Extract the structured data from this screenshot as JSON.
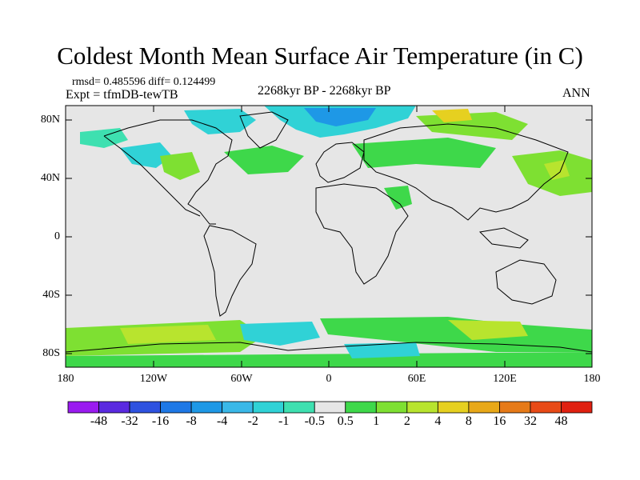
{
  "title": "Coldest Month Mean Surface Air Temperature (in C)",
  "stats": "rmsd= 0.485596 diff= 0.124499",
  "experiment": "Expt = tfmDB-tewTB",
  "period": "2268kyr BP - 2268kyr BP",
  "season": "ANN",
  "lat_labels": [
    "80N",
    "40N",
    "0",
    "40S",
    "80S"
  ],
  "lon_labels": [
    "180",
    "120W",
    "60W",
    "0",
    "60E",
    "120E",
    "180"
  ],
  "colorbar": {
    "labels": [
      "-48",
      "-32",
      "-16",
      "-8",
      "-4",
      "-2",
      "-1",
      "-0.5",
      "0.5",
      "1",
      "2",
      "4",
      "8",
      "16",
      "32",
      "48"
    ],
    "colors": [
      "#9a1bf0",
      "#5a2ae0",
      "#2e52e0",
      "#1e78e6",
      "#1e98e6",
      "#3ab8e8",
      "#30d2d6",
      "#3ee0b0",
      "#e6e6e6",
      "#3ed84a",
      "#7ee032",
      "#b8e42e",
      "#e6d020",
      "#e8a818",
      "#e67a18",
      "#e84a16",
      "#e02010"
    ]
  },
  "legend_note": ""
}
